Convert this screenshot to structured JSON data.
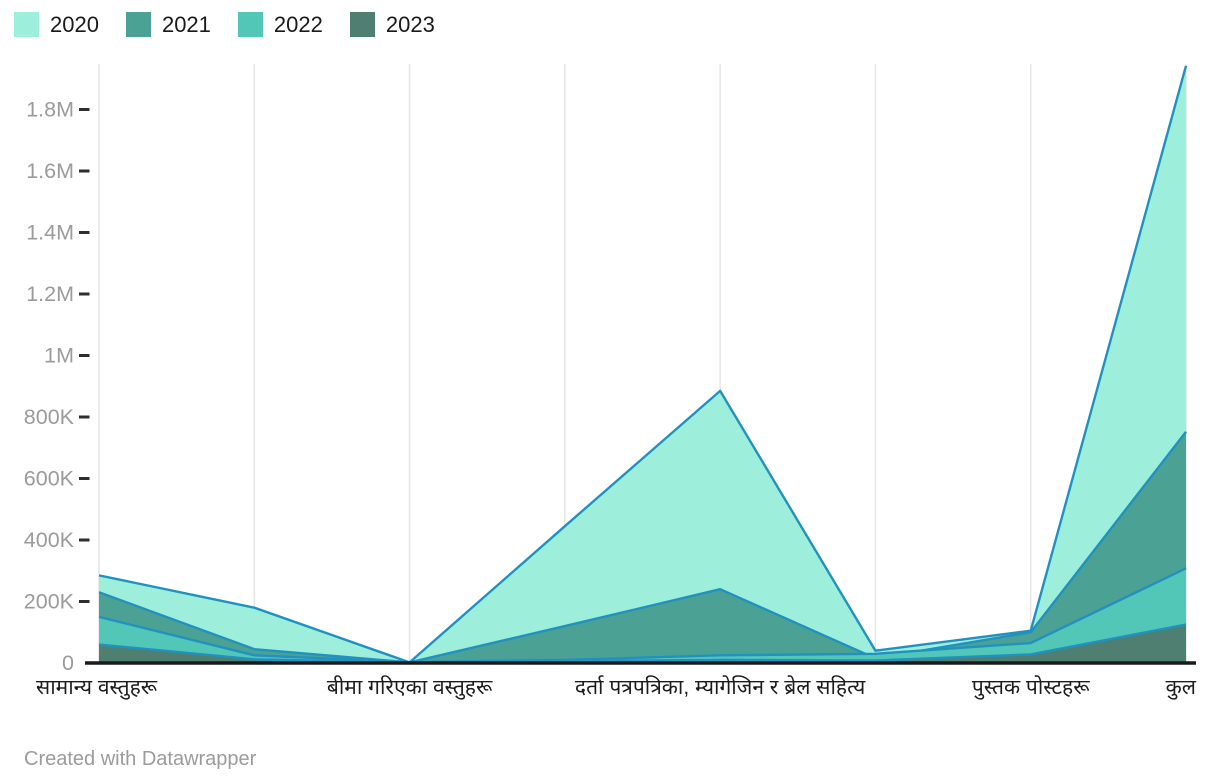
{
  "legend": {
    "items": [
      {
        "label": "2020",
        "color": "#9DEFDB"
      },
      {
        "label": "2021",
        "color": "#4BA294"
      },
      {
        "label": "2022",
        "color": "#52C7B7"
      },
      {
        "label": "2023",
        "color": "#4E7F70"
      }
    ]
  },
  "chart_data": {
    "type": "area",
    "mode": "overlapping",
    "title": "",
    "xlabel": "",
    "ylabel": "",
    "categories": [
      "सामान्य वस्तुहरू",
      "",
      "बीमा गरिएका वस्तुहरू",
      "",
      "दर्ता पत्रपत्रिका, म्यागेजिन र ब्रेल सहित्य",
      "",
      "पुस्तक पोस्टहरू",
      "कुल"
    ],
    "x_labels": [
      {
        "text": "सामान्य वस्तुहरू",
        "index": 0,
        "align": "left"
      },
      {
        "text": "बीमा गरिएका वस्तुहरू",
        "index": 2,
        "align": "center"
      },
      {
        "text": "दर्ता पत्रपत्रिका, म्यागेजिन र ब्रेल सहित्य",
        "index": 4,
        "align": "center"
      },
      {
        "text": "पुस्तक पोस्टहरू",
        "index": 6,
        "align": "center"
      },
      {
        "text": "कुल",
        "index": 7,
        "align": "right"
      }
    ],
    "series": [
      {
        "name": "2020",
        "color": "#9DEFDB",
        "values": [
          285000,
          180000,
          2000,
          445000,
          885000,
          40000,
          105000,
          1942000
        ]
      },
      {
        "name": "2021",
        "color": "#4BA294",
        "values": [
          230000,
          45000,
          2000,
          120000,
          240000,
          15000,
          100000,
          752000
        ]
      },
      {
        "name": "2022",
        "color": "#52C7B7",
        "values": [
          150000,
          25000,
          3000,
          10000,
          25000,
          30000,
          65000,
          308000
        ]
      },
      {
        "name": "2023",
        "color": "#4E7F70",
        "values": [
          60000,
          12000,
          1000,
          6000,
          10000,
          8000,
          28000,
          125000
        ]
      }
    ],
    "y_ticks": [
      {
        "label": "0",
        "value": 0
      },
      {
        "label": "200K",
        "value": 200000
      },
      {
        "label": "400K",
        "value": 400000
      },
      {
        "label": "600K",
        "value": 600000
      },
      {
        "label": "800K",
        "value": 800000
      },
      {
        "label": "1M",
        "value": 1000000
      },
      {
        "label": "1.2M",
        "value": 1200000
      },
      {
        "label": "1.4M",
        "value": 1400000
      },
      {
        "label": "1.6M",
        "value": 1600000
      },
      {
        "label": "1.8M",
        "value": 1800000
      }
    ],
    "ylim": [
      0,
      1945000
    ],
    "grid": "vertical-only",
    "legend_position": "top-left",
    "colors": {
      "line": "#2191BF",
      "gridline": "#E6E6E6",
      "axis_baseline": "#191A1B",
      "tick_dash": "#2E2E2E",
      "y_tick_label": "#9B9B9B",
      "x_tick_label": "#1C1C1C"
    }
  },
  "footer": {
    "credit": "Created with Datawrapper"
  }
}
